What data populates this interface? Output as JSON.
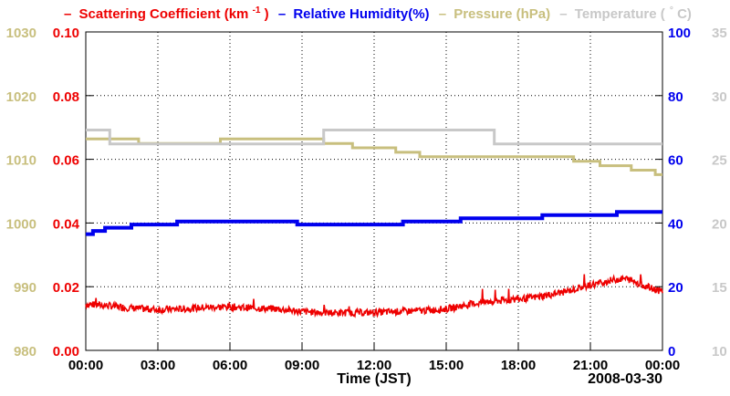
{
  "chart_data": {
    "type": "line",
    "title": "",
    "xlabel": "Time (JST)",
    "date_label": "2008-03-30",
    "x_range_hours": [
      0,
      24
    ],
    "x_ticks": [
      "00:00",
      "03:00",
      "06:00",
      "09:00",
      "12:00",
      "15:00",
      "18:00",
      "21:00",
      "00:00"
    ],
    "legend": {
      "scattering": "Scattering Coefficient (km",
      "scattering_sup": "-1",
      "scattering_close": ")",
      "humidity": "Relative Humidity(%)",
      "pressure": "Pressure (hPa)",
      "temperature": "Temperature (",
      "temperature_close": "C)",
      "dash": "–"
    },
    "axes": {
      "pressure": {
        "color": "#c8bf7e",
        "range": [
          980,
          1030
        ],
        "ticks": [
          "980",
          "990",
          "1000",
          "1010",
          "1020",
          "1030"
        ]
      },
      "scattering": {
        "color": "#ee0000",
        "range": [
          0,
          0.1
        ],
        "ticks": [
          "0.00",
          "0.02",
          "0.04",
          "0.06",
          "0.08",
          "0.10"
        ]
      },
      "humidity": {
        "color": "#0000ee",
        "range": [
          0,
          100
        ],
        "ticks": [
          "0",
          "20",
          "40",
          "60",
          "80",
          "100"
        ]
      },
      "temperature": {
        "color": "#c8c8c8",
        "range": [
          10,
          35
        ],
        "ticks": [
          "10",
          "15",
          "20",
          "25",
          "30",
          "35"
        ]
      }
    },
    "series": [
      {
        "name": "Pressure (hPa)",
        "axis": "pressure",
        "type": "step",
        "points": [
          [
            0,
            1013.2
          ],
          [
            2.2,
            1012.5
          ],
          [
            5.6,
            1013.2
          ],
          [
            9.9,
            1012.5
          ],
          [
            11.1,
            1011.8
          ],
          [
            12.9,
            1011.1
          ],
          [
            13.9,
            1010.4
          ],
          [
            20.3,
            1009.7
          ],
          [
            21.4,
            1009.0
          ],
          [
            22.7,
            1008.3
          ],
          [
            23.7,
            1007.6
          ],
          [
            24,
            1007.6
          ]
        ]
      },
      {
        "name": "Relative Humidity(%)",
        "axis": "humidity",
        "type": "step",
        "points": [
          [
            0,
            36.5
          ],
          [
            0.3,
            37.5
          ],
          [
            0.8,
            38.5
          ],
          [
            1.9,
            39.5
          ],
          [
            3.8,
            40.5
          ],
          [
            8.8,
            39.5
          ],
          [
            13.2,
            40.5
          ],
          [
            15.6,
            41.5
          ],
          [
            19.0,
            42.5
          ],
          [
            22.1,
            43.5
          ],
          [
            24,
            43.5
          ]
        ]
      },
      {
        "name": "Temperature (C)",
        "axis": "temperature",
        "type": "step",
        "points": [
          [
            0,
            27.3
          ],
          [
            1.0,
            26.2
          ],
          [
            9.9,
            27.3
          ],
          [
            17.0,
            26.2
          ],
          [
            24,
            26.2
          ]
        ]
      },
      {
        "name": "Scattering Coefficient (km-1)",
        "axis": "scattering",
        "type": "line",
        "points": [
          [
            0,
            0.0145
          ],
          [
            1,
            0.014
          ],
          [
            2,
            0.0132
          ],
          [
            3,
            0.0128
          ],
          [
            4,
            0.013
          ],
          [
            5,
            0.0135
          ],
          [
            6,
            0.0137
          ],
          [
            7,
            0.0133
          ],
          [
            8,
            0.013
          ],
          [
            9,
            0.0122
          ],
          [
            10,
            0.0118
          ],
          [
            11,
            0.0118
          ],
          [
            12,
            0.0119
          ],
          [
            13,
            0.0122
          ],
          [
            14,
            0.0125
          ],
          [
            15,
            0.013
          ],
          [
            16,
            0.0145
          ],
          [
            17,
            0.0155
          ],
          [
            18,
            0.016
          ],
          [
            19,
            0.017
          ],
          [
            20,
            0.0185
          ],
          [
            21,
            0.0205
          ],
          [
            22,
            0.0222
          ],
          [
            22.5,
            0.0225
          ],
          [
            23,
            0.0212
          ],
          [
            23.5,
            0.0195
          ],
          [
            24,
            0.0185
          ]
        ]
      }
    ]
  }
}
